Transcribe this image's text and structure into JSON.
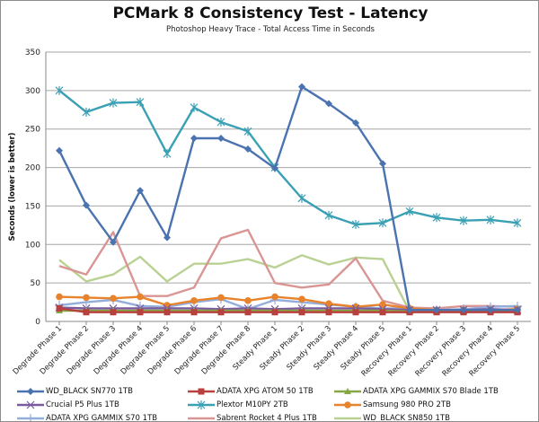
{
  "chart_data": {
    "type": "line",
    "title": "PCMark 8 Consistency Test - Latency",
    "subtitle": "Photoshop Heavy Trace - Total Access Time in Seconds",
    "ylabel": "Seconds (lower is better)",
    "xlabel": "",
    "ylim": [
      0,
      350
    ],
    "yticks": [
      "0",
      "50",
      "100",
      "150",
      "200",
      "250",
      "300",
      "350"
    ],
    "grid": true,
    "legend": "bottom",
    "categories": [
      "Degrade Phase 1",
      "Degrade Phase 2",
      "Degrade Phase 3",
      "Degrade Phase 4",
      "Degrade Phase 5",
      "Degrade Phase 6",
      "Degrade Phase 7",
      "Degrade Phase 8",
      "Steady Phase 1",
      "Steady Phase 2",
      "Steady Phase 3",
      "Steady Phase 4",
      "Steady Phase 5",
      "Recovery Phase 1",
      "Recovery Phase 2",
      "Recovery Phase 3",
      "Recovery Phase 4",
      "Recovery Phase 5"
    ],
    "series": [
      {
        "name": "WD_BLACK SN770 1TB",
        "color": "#4a73b0",
        "marker": "diamond",
        "values": [
          222,
          151,
          103,
          170,
          109,
          238,
          238,
          224,
          199,
          305,
          283,
          258,
          205,
          15,
          15,
          15,
          15,
          15
        ]
      },
      {
        "name": "ADATA XPG ATOM 50 1TB",
        "color": "#b8403e",
        "marker": "square",
        "values": [
          17,
          12,
          12,
          12,
          12,
          12,
          12,
          12,
          12,
          12,
          12,
          12,
          12,
          12,
          12,
          12,
          12,
          12
        ]
      },
      {
        "name": "ADATA XPG GAMMIX S70 Blade 1TB",
        "color": "#86a844",
        "marker": "triangle",
        "values": [
          14,
          14,
          14,
          14,
          14,
          14,
          14,
          14,
          14,
          14,
          14,
          14,
          14,
          13,
          13,
          13,
          13,
          13
        ]
      },
      {
        "name": "Crucial P5 Plus 1TB",
        "color": "#7a5a9e",
        "marker": "x",
        "values": [
          18,
          17,
          17,
          17,
          17,
          17,
          16,
          17,
          16,
          17,
          17,
          17,
          16,
          15,
          15,
          15,
          16,
          15
        ]
      },
      {
        "name": "Plextor M10PY 2TB",
        "color": "#3aa0b4",
        "marker": "star",
        "values": [
          300,
          272,
          284,
          285,
          218,
          278,
          259,
          247,
          200,
          160,
          138,
          126,
          128,
          143,
          135,
          131,
          132,
          128
        ]
      },
      {
        "name": "Samsung 980 PRO 2TB",
        "color": "#e8832d",
        "marker": "circle",
        "values": [
          32,
          31,
          30,
          32,
          21,
          27,
          31,
          27,
          32,
          29,
          23,
          19,
          22,
          17,
          15,
          15,
          15,
          16
        ]
      },
      {
        "name": "ADATA XPG GAMMIX S70 1TB",
        "color": "#94aedc",
        "marker": "plus",
        "values": [
          21,
          25,
          28,
          20,
          19,
          25,
          29,
          16,
          28,
          25,
          22,
          19,
          17,
          17,
          15,
          16,
          19,
          20
        ]
      },
      {
        "name": "Sabrent Rocket 4 Plus 1TB",
        "color": "#d99594",
        "marker": "none",
        "values": [
          72,
          61,
          116,
          33,
          33,
          44,
          108,
          119,
          50,
          44,
          48,
          82,
          27,
          18,
          17,
          20,
          20,
          19
        ]
      },
      {
        "name": "WD_BLACK SN850 1TB",
        "color": "#b9d293",
        "marker": "none",
        "values": [
          80,
          52,
          61,
          84,
          52,
          75,
          75,
          81,
          70,
          86,
          74,
          83,
          81,
          13,
          13,
          13,
          13,
          13
        ]
      }
    ]
  }
}
